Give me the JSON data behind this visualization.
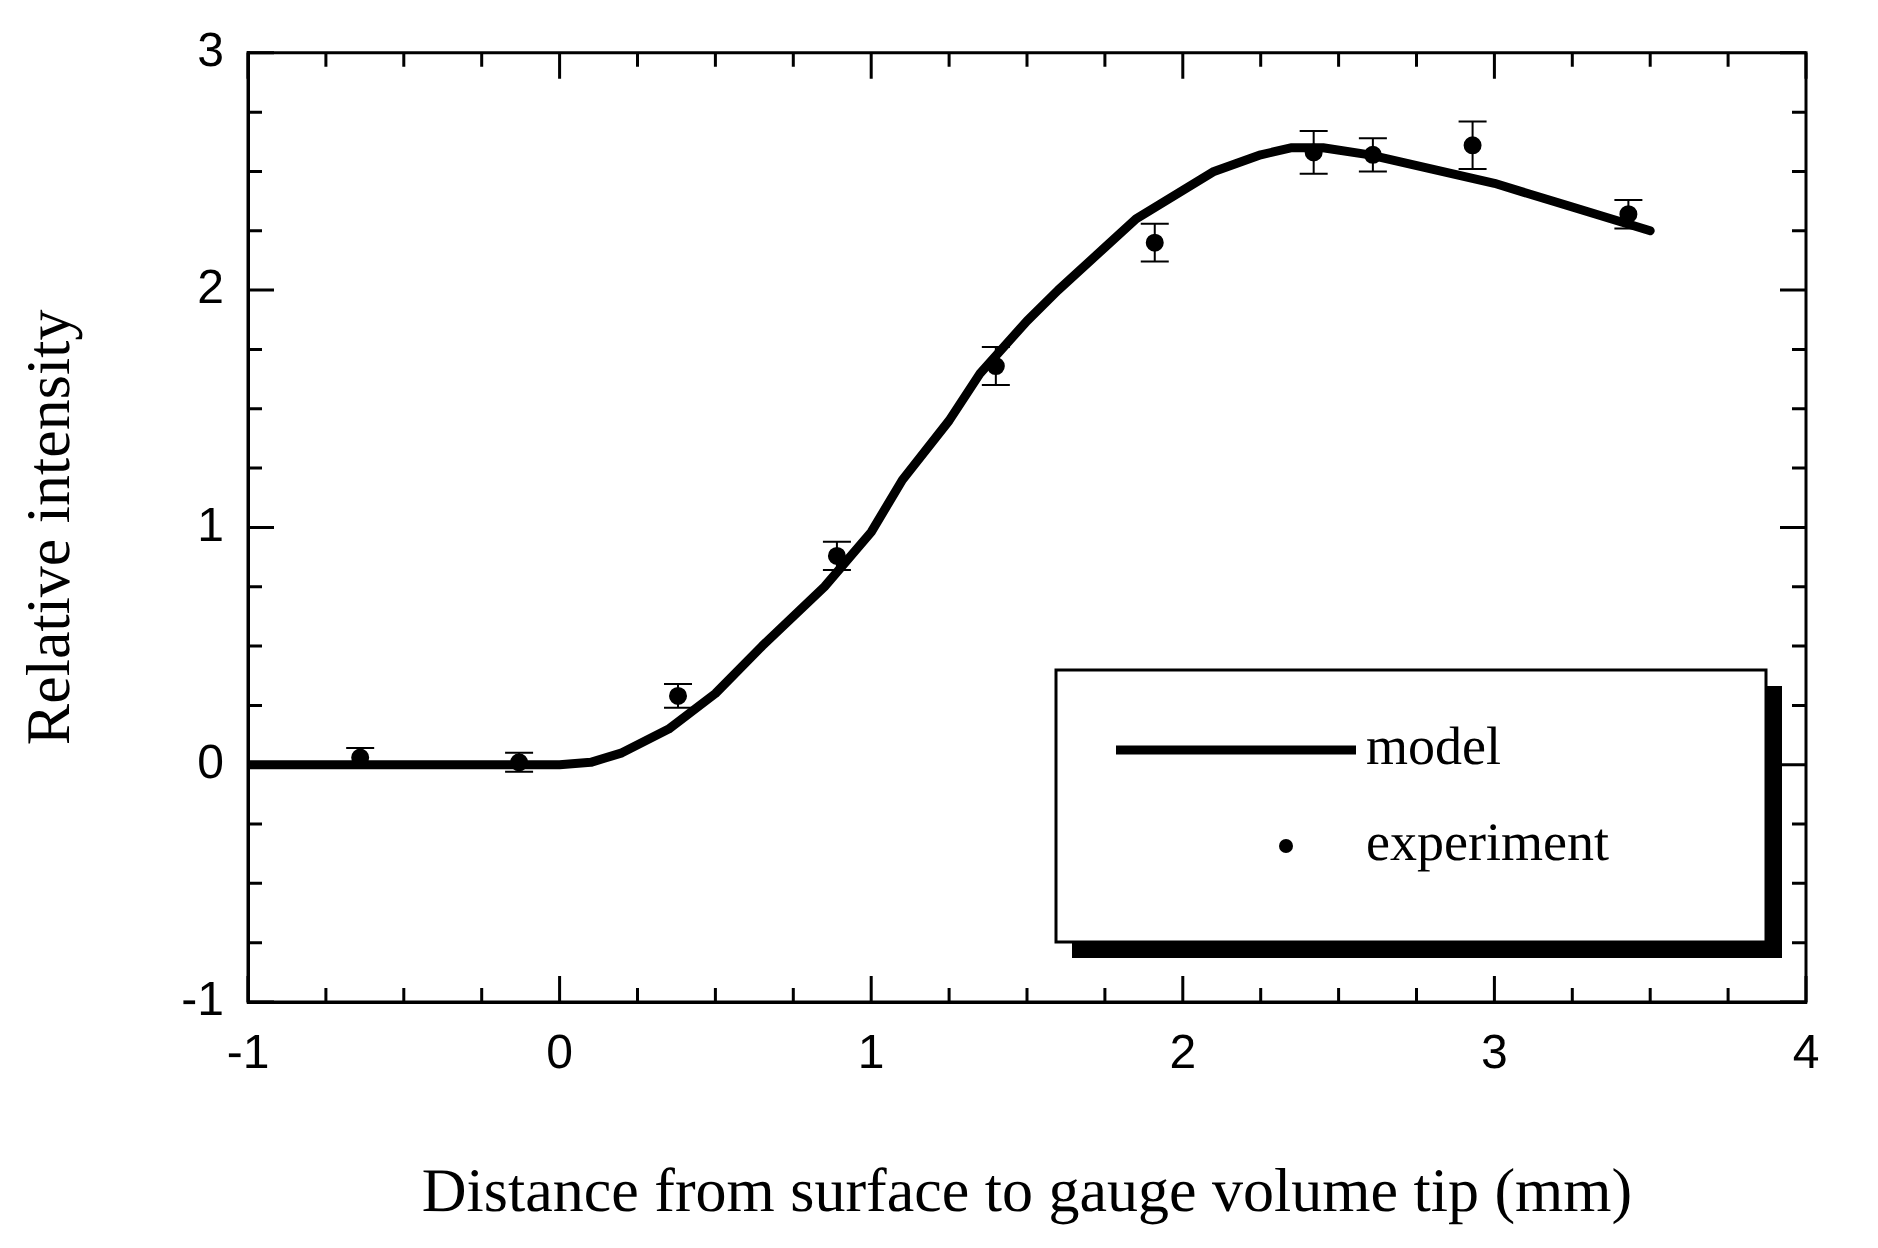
{
  "chart_data": {
    "type": "line",
    "xlabel": "Distance from surface to gauge volume tip (mm)",
    "ylabel": "Relative intensity",
    "xlim": [
      -1,
      4
    ],
    "ylim": [
      -1,
      3
    ],
    "xticks": [
      -1,
      {
        "value": -0.75,
        "label": null
      },
      {
        "value": -0.5,
        "label": null
      },
      {
        "value": -0.25,
        "label": null
      },
      0,
      {
        "value": 0.25,
        "label": null
      },
      {
        "value": 0.5,
        "label": null
      },
      {
        "value": 0.75,
        "label": null
      },
      1,
      {
        "value": 1.25,
        "label": null
      },
      {
        "value": 1.5,
        "label": null
      },
      {
        "value": 1.75,
        "label": null
      },
      2,
      {
        "value": 2.25,
        "label": null
      },
      {
        "value": 2.5,
        "label": null
      },
      {
        "value": 2.75,
        "label": null
      },
      3,
      {
        "value": 3.25,
        "label": null
      },
      {
        "value": 3.5,
        "label": null
      },
      {
        "value": 3.75,
        "label": null
      },
      4
    ],
    "yticks": [
      -1,
      {
        "value": -0.75,
        "label": null
      },
      {
        "value": -0.5,
        "label": null
      },
      {
        "value": -0.25,
        "label": null
      },
      0,
      {
        "value": 0.25,
        "label": null
      },
      {
        "value": 0.5,
        "label": null
      },
      {
        "value": 0.75,
        "label": null
      },
      1,
      {
        "value": 1.25,
        "label": null
      },
      {
        "value": 1.5,
        "label": null
      },
      {
        "value": 1.75,
        "label": null
      },
      2,
      {
        "value": 2.25,
        "label": null
      },
      {
        "value": 2.5,
        "label": null
      },
      {
        "value": 2.75,
        "label": null
      },
      3
    ],
    "grid": false,
    "legend": "bottom right",
    "series": [
      {
        "name": "model",
        "color": "#000000",
        "marker": "none",
        "line_style": "solid",
        "x": [
          -1,
          -0.5,
          0,
          0.1,
          0.2,
          0.35,
          0.5,
          0.65,
          0.85,
          1.0,
          1.1,
          1.25,
          1.35,
          1.5,
          1.6,
          1.75,
          1.85,
          2.0,
          2.1,
          2.25,
          2.35,
          2.45,
          2.6,
          2.8,
          3.0,
          3.25,
          3.5
        ],
        "values": [
          0,
          0,
          0,
          0.01,
          0.05,
          0.15,
          0.3,
          0.5,
          0.75,
          0.98,
          1.2,
          1.45,
          1.65,
          1.87,
          2.0,
          2.18,
          2.3,
          2.42,
          2.5,
          2.57,
          2.6,
          2.6,
          2.57,
          2.51,
          2.45,
          2.35,
          2.25
        ]
      },
      {
        "name": "experiment",
        "type": "scatter",
        "color": "#000000",
        "marker": "circle",
        "x": [
          -0.64,
          -0.13,
          0.38,
          0.89,
          1.4,
          1.91,
          2.42,
          2.61,
          2.93,
          3.43
        ],
        "values": [
          0.03,
          0.01,
          0.29,
          0.88,
          1.68,
          2.2,
          2.58,
          2.57,
          2.61,
          2.32
        ],
        "errors": [
          0.04,
          0.04,
          0.05,
          0.06,
          0.08,
          0.08,
          0.09,
          0.07,
          0.1,
          0.06
        ]
      }
    ]
  }
}
